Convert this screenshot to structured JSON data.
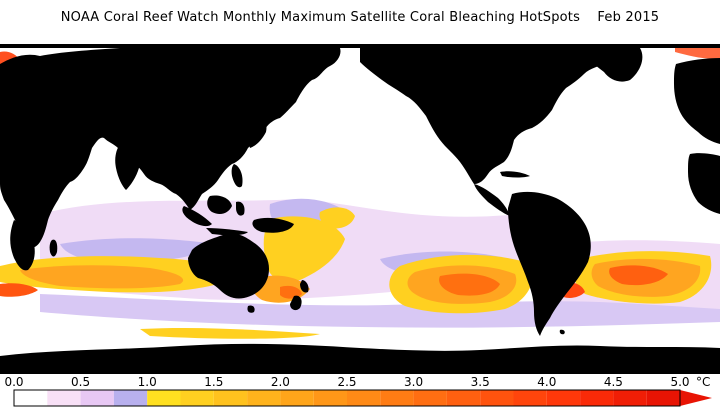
{
  "title": {
    "text": "NOAA Coral Reef Watch Monthly Maximum Satellite Coral Bleaching HotSpots",
    "date": "Feb 2015"
  },
  "colorbar": {
    "ticks": [
      "0.0",
      "0.5",
      "1.0",
      "1.5",
      "2.0",
      "2.5",
      "3.0",
      "3.5",
      "4.0",
      "4.5",
      "5.0"
    ],
    "unit": "°C",
    "bins": [
      {
        "from": 0.0,
        "to": 0.25,
        "color": "#ffffff"
      },
      {
        "from": 0.25,
        "to": 0.5,
        "color": "#f8e0f6"
      },
      {
        "from": 0.5,
        "to": 0.75,
        "color": "#e8c8f4"
      },
      {
        "from": 0.75,
        "to": 1.0,
        "color": "#b8b0ee"
      },
      {
        "from": 1.0,
        "to": 1.25,
        "color": "#ffe020"
      },
      {
        "from": 1.25,
        "to": 1.5,
        "color": "#ffd020"
      },
      {
        "from": 1.5,
        "to": 1.75,
        "color": "#ffc21e"
      },
      {
        "from": 1.75,
        "to": 2.0,
        "color": "#ffb31c"
      },
      {
        "from": 2.0,
        "to": 2.25,
        "color": "#ffa51a"
      },
      {
        "from": 2.25,
        "to": 2.5,
        "color": "#ff9718"
      },
      {
        "from": 2.5,
        "to": 2.75,
        "color": "#ff8a16"
      },
      {
        "from": 2.75,
        "to": 3.0,
        "color": "#ff7c14"
      },
      {
        "from": 3.0,
        "to": 3.25,
        "color": "#ff6e12"
      },
      {
        "from": 3.25,
        "to": 3.5,
        "color": "#ff6010"
      },
      {
        "from": 3.5,
        "to": 3.75,
        "color": "#ff530e"
      },
      {
        "from": 3.75,
        "to": 4.0,
        "color": "#ff450c"
      },
      {
        "from": 4.0,
        "to": 4.25,
        "color": "#ff380a"
      },
      {
        "from": 4.25,
        "to": 4.5,
        "color": "#fa2a08"
      },
      {
        "from": 4.5,
        "to": 4.75,
        "color": "#f01e06"
      },
      {
        "from": 4.75,
        "to": 5.0,
        "color": "#e81404"
      }
    ]
  },
  "colors": {
    "land": "#000000",
    "ocean": "#ffffff",
    "low_lilac": "#e8c8f4",
    "mid_lavender": "#b8b0ee",
    "warm_yellow": "#ffd020",
    "warm_orange": "#ffa020",
    "hot_orange": "#ff7a10",
    "hot_red": "#ff4010"
  }
}
